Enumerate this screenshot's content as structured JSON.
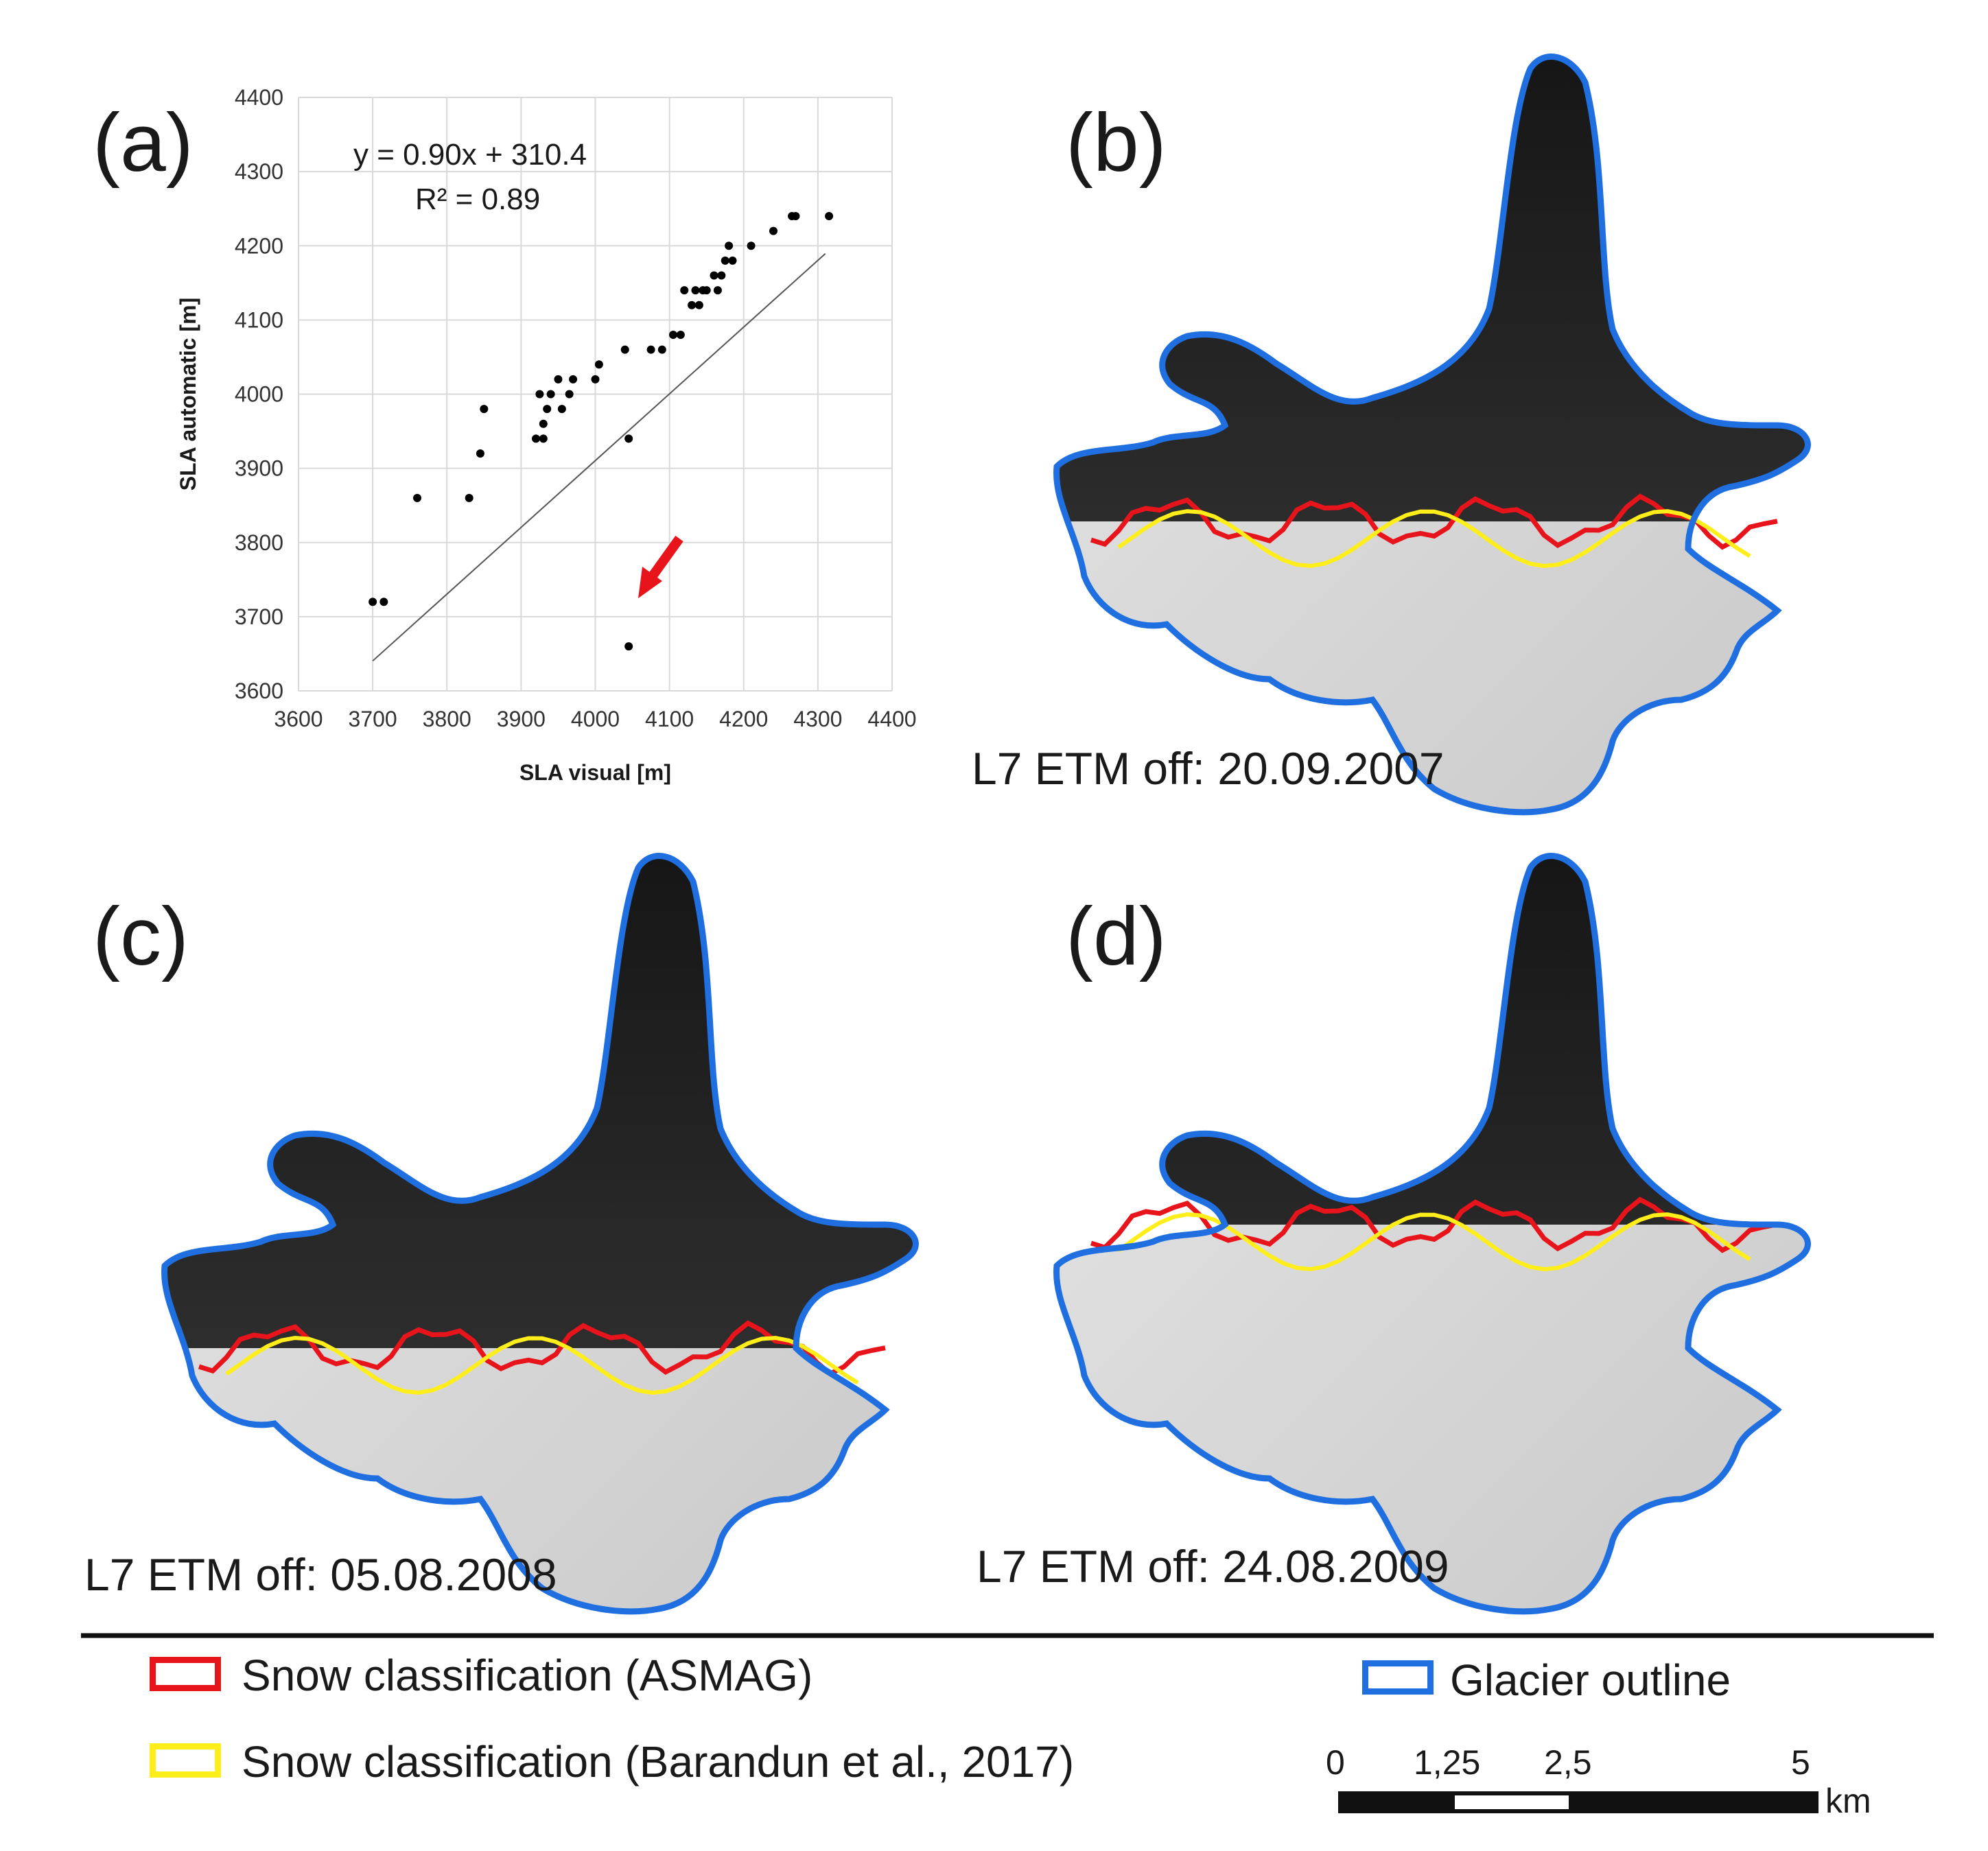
{
  "panels": {
    "a": "(a)",
    "b": "(b)",
    "c": "(c)",
    "d": "(d)"
  },
  "captions": {
    "b": "L7 ETM off: 20.09.2007",
    "c": "L7 ETM off: 05.08.2008",
    "d": "L7 ETM off: 24.08.2009"
  },
  "legend": {
    "asmag": "Snow classification (ASMAG)",
    "barandun": "Snow classification (Barandun et al., 2017)",
    "outline": "Glacier outline",
    "colors": {
      "asmag": "#e8141b",
      "barandun": "#ffee1a",
      "outline": "#1f6fe0"
    }
  },
  "scalebar": {
    "labels": [
      "0",
      "1,25",
      "2,5",
      "5"
    ],
    "unit": "km"
  },
  "chart_data": {
    "type": "scatter",
    "xlabel": "SLA visual [m]",
    "ylabel": "SLA automatic [m]",
    "xlim": [
      3600,
      4400
    ],
    "ylim": [
      3600,
      4400
    ],
    "xticks": [
      "3600",
      "3700",
      "3800",
      "3900",
      "4000",
      "4100",
      "4200",
      "4300",
      "4400"
    ],
    "yticks": [
      "3600",
      "3700",
      "3800",
      "3900",
      "4000",
      "4100",
      "4200",
      "4300",
      "4400"
    ],
    "grid": true,
    "equation": "y = 0.90x + 310.4",
    "r_squared": "R² = 0.89",
    "trendline": {
      "slope": 0.9,
      "intercept": 310.4,
      "x_range": [
        3700,
        4310
      ]
    },
    "points": [
      [
        3700,
        3720
      ],
      [
        3715,
        3720
      ],
      [
        3760,
        3860
      ],
      [
        3830,
        3860
      ],
      [
        3845,
        3920
      ],
      [
        3850,
        3980
      ],
      [
        3920,
        3940
      ],
      [
        3930,
        3940
      ],
      [
        3925,
        4000
      ],
      [
        3930,
        3960
      ],
      [
        3935,
        3980
      ],
      [
        3940,
        4000
      ],
      [
        3950,
        4020
      ],
      [
        3955,
        3980
      ],
      [
        3965,
        4000
      ],
      [
        3970,
        4020
      ],
      [
        4000,
        4020
      ],
      [
        4005,
        4040
      ],
      [
        4040,
        4060
      ],
      [
        4045,
        3940
      ],
      [
        4075,
        4060
      ],
      [
        4090,
        4060
      ],
      [
        4105,
        4080
      ],
      [
        4115,
        4080
      ],
      [
        4120,
        4140
      ],
      [
        4130,
        4120
      ],
      [
        4135,
        4140
      ],
      [
        4140,
        4120
      ],
      [
        4145,
        4140
      ],
      [
        4150,
        4140
      ],
      [
        4160,
        4160
      ],
      [
        4165,
        4140
      ],
      [
        4170,
        4160
      ],
      [
        4175,
        4180
      ],
      [
        4180,
        4200
      ],
      [
        4185,
        4180
      ],
      [
        4210,
        4200
      ],
      [
        4240,
        4220
      ],
      [
        4265,
        4240
      ],
      [
        4270,
        4240
      ],
      [
        4315,
        4240
      ],
      [
        4045,
        3660
      ]
    ],
    "outlier_point": [
      4045,
      3660
    ]
  }
}
